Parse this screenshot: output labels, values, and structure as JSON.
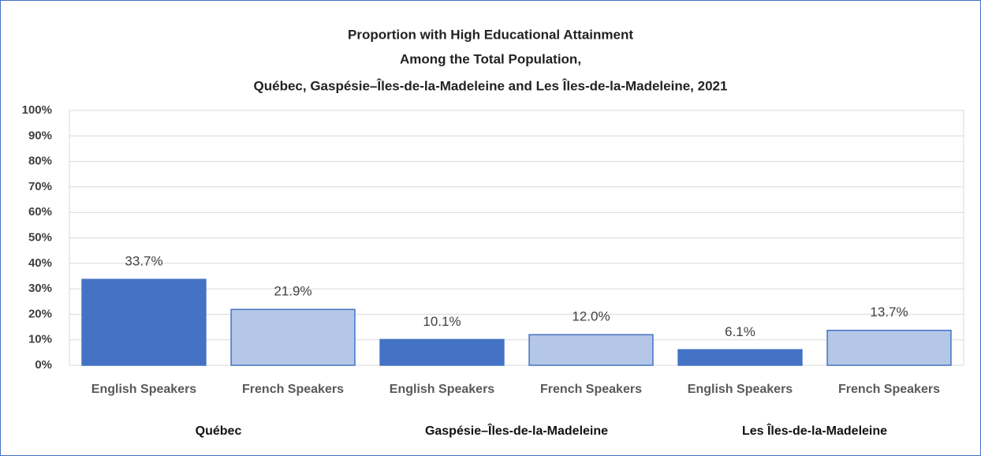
{
  "chart_data": {
    "type": "bar",
    "title": [
      "Proportion with High Educational Attainment",
      "Among the Total Population,",
      "Québec, Gaspésie–Îles-de-la-Madeleine and Les Îles-de-la-Madeleine, 2021"
    ],
    "categories": [
      "English Speakers",
      "French Speakers",
      "English Speakers",
      "French Speakers",
      "English Speakers",
      "French Speakers"
    ],
    "groups": [
      "Québec",
      "Gaspésie–Îles-de-la-Madeleine",
      "Les Îles-de-la-Madeleine"
    ],
    "values": [
      33.7,
      21.9,
      10.1,
      12.0,
      6.1,
      13.7
    ],
    "value_labels": [
      "33.7%",
      "21.9%",
      "10.1%",
      "12.0%",
      "6.1%",
      "13.7%"
    ],
    "colors": [
      "#4472c4",
      "#b4c7e7",
      "#4472c4",
      "#b4c7e7",
      "#4472c4",
      "#b4c7e7"
    ],
    "ylim": [
      0,
      100
    ],
    "yticks": [
      {
        "value": 0,
        "label": "0%"
      },
      {
        "value": 10,
        "label": "10%"
      },
      {
        "value": 20,
        "label": "20%"
      },
      {
        "value": 30,
        "label": "30%"
      },
      {
        "value": 40,
        "label": "40%"
      },
      {
        "value": 50,
        "label": "50%"
      },
      {
        "value": 60,
        "label": "60%"
      },
      {
        "value": 70,
        "label": "70%"
      },
      {
        "value": 80,
        "label": "80%"
      },
      {
        "value": 90,
        "label": "90%"
      },
      {
        "value": 100,
        "label": "100%"
      }
    ],
    "grid": true
  }
}
